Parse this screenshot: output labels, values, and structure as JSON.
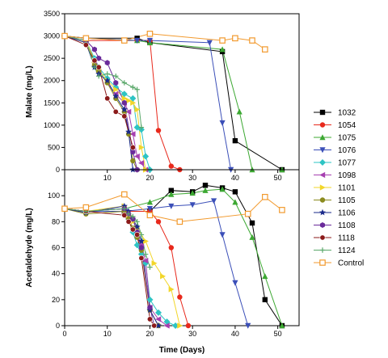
{
  "chart_data": [
    {
      "type": "line",
      "ylabel": "Malate (mg/L)",
      "xlabel": "",
      "xlim": [
        0,
        55
      ],
      "ylim": [
        0,
        3500
      ],
      "yticks": [
        0,
        500,
        1000,
        1500,
        2000,
        2500,
        3000,
        3500
      ],
      "xticks": [
        10,
        20,
        30,
        40,
        50
      ],
      "grid": false,
      "series": [
        {
          "name": "1032",
          "color": "#000000",
          "marker": "square",
          "x": [
            0,
            5,
            17,
            20,
            37,
            40,
            51
          ],
          "y": [
            3000,
            2950,
            2950,
            2850,
            2650,
            650,
            0
          ]
        },
        {
          "name": "1054",
          "color": "#e8291c",
          "marker": "circle",
          "x": [
            0,
            5,
            17,
            20,
            22,
            25,
            27
          ],
          "y": [
            3000,
            2900,
            2900,
            2900,
            880,
            80,
            0
          ]
        },
        {
          "name": "1075",
          "color": "#3ca832",
          "marker": "triangle-up",
          "x": [
            0,
            5,
            17,
            20,
            37,
            41,
            44,
            51
          ],
          "y": [
            3000,
            2950,
            2900,
            2850,
            2700,
            1300,
            0,
            0
          ]
        },
        {
          "name": "1076",
          "color": "#3b4fb8",
          "marker": "triangle-down",
          "x": [
            0,
            5,
            17,
            20,
            34,
            37,
            39
          ],
          "y": [
            3000,
            2950,
            2900,
            2900,
            2850,
            1050,
            0
          ]
        },
        {
          "name": "1077",
          "color": "#2ec4c4",
          "marker": "diamond",
          "x": [
            0,
            5,
            7,
            8,
            10,
            12,
            14,
            16,
            17,
            18,
            19,
            20
          ],
          "y": [
            3000,
            2900,
            2500,
            2300,
            2050,
            1850,
            1700,
            1600,
            950,
            900,
            300,
            0
          ]
        },
        {
          "name": "1098",
          "color": "#a63fb0",
          "marker": "triangle-left",
          "x": [
            0,
            5,
            7,
            8,
            10,
            12,
            14,
            15,
            16,
            17,
            18,
            19
          ],
          "y": [
            3000,
            2900,
            2400,
            2200,
            1950,
            1700,
            1500,
            1300,
            800,
            300,
            150,
            0
          ]
        },
        {
          "name": "1101",
          "color": "#f2d62a",
          "marker": "triangle-right",
          "x": [
            0,
            5,
            7,
            8,
            10,
            12,
            14,
            15,
            16,
            17,
            18,
            19
          ],
          "y": [
            3000,
            2900,
            2450,
            2250,
            2000,
            1800,
            1600,
            1550,
            1500,
            1350,
            500,
            0
          ]
        },
        {
          "name": "1105",
          "color": "#8b8b1e",
          "marker": "circle",
          "x": [
            0,
            5,
            7,
            8,
            10,
            12,
            14,
            15,
            16,
            17
          ],
          "y": [
            3000,
            2850,
            2350,
            2200,
            1950,
            1600,
            1300,
            800,
            200,
            0
          ]
        },
        {
          "name": "1106",
          "color": "#1a2a8a",
          "marker": "star",
          "x": [
            0,
            5,
            7,
            8,
            10,
            12,
            14,
            15,
            16
          ],
          "y": [
            3000,
            2850,
            2300,
            2150,
            2000,
            1650,
            1350,
            850,
            0
          ]
        },
        {
          "name": "1108",
          "color": "#6a2a9a",
          "marker": "hexagon",
          "x": [
            0,
            5,
            7,
            8,
            10,
            12,
            14,
            16,
            17
          ],
          "y": [
            3000,
            2900,
            2700,
            2500,
            2400,
            1950,
            1500,
            400,
            0
          ]
        },
        {
          "name": "1118",
          "color": "#8b1a1a",
          "marker": "circle-half",
          "x": [
            0,
            5,
            7,
            8,
            10,
            12,
            14,
            16
          ],
          "y": [
            3000,
            2800,
            2450,
            2300,
            1600,
            1300,
            1200,
            500
          ]
        },
        {
          "name": "1124",
          "color": "#5aa86a",
          "marker": "plus",
          "x": [
            0,
            5,
            7,
            8,
            10,
            12,
            14,
            16,
            17,
            18
          ],
          "y": [
            3000,
            2900,
            2300,
            2100,
            2150,
            2100,
            1950,
            1850,
            1800,
            950
          ]
        },
        {
          "name": "Control",
          "color": "#f29a2e",
          "marker": "square-open",
          "x": [
            0,
            5,
            14,
            20,
            37,
            40,
            44,
            47
          ],
          "y": [
            3000,
            2950,
            2900,
            3050,
            2900,
            2950,
            2900,
            2700
          ]
        }
      ]
    },
    {
      "type": "line",
      "ylabel": "Acetaldehyde (mg/L)",
      "xlabel": "Time (Days)",
      "xlim": [
        0,
        55
      ],
      "ylim": [
        0,
        120
      ],
      "yticks": [
        0,
        20,
        40,
        60,
        80,
        100
      ],
      "xticks": [
        0,
        10,
        20,
        30,
        40,
        50
      ],
      "grid": false,
      "series": [
        {
          "name": "1032",
          "color": "#000000",
          "marker": "square",
          "x": [
            0,
            5,
            14,
            20,
            25,
            30,
            33,
            37,
            40,
            44,
            47,
            51
          ],
          "y": [
            90,
            88,
            88,
            88,
            104,
            103,
            108,
            106,
            103,
            79,
            20,
            0
          ]
        },
        {
          "name": "1054",
          "color": "#e8291c",
          "marker": "circle",
          "x": [
            0,
            5,
            14,
            20,
            22,
            25,
            27,
            29
          ],
          "y": [
            90,
            88,
            88,
            88,
            80,
            60,
            22,
            0
          ]
        },
        {
          "name": "1075",
          "color": "#3ca832",
          "marker": "triangle-up",
          "x": [
            0,
            5,
            14,
            20,
            25,
            30,
            33,
            37,
            40,
            44,
            47,
            51
          ],
          "y": [
            90,
            88,
            90,
            95,
            101,
            102,
            104,
            105,
            95,
            68,
            38,
            0
          ]
        },
        {
          "name": "1076",
          "color": "#3b4fb8",
          "marker": "triangle-down",
          "x": [
            0,
            5,
            14,
            20,
            25,
            30,
            35,
            37,
            40,
            43
          ],
          "y": [
            90,
            88,
            88,
            90,
            92,
            93,
            96,
            70,
            33,
            0
          ]
        },
        {
          "name": "1077",
          "color": "#2ec4c4",
          "marker": "diamond",
          "x": [
            0,
            5,
            14,
            15,
            16,
            17,
            18,
            19,
            20,
            22,
            24,
            26
          ],
          "y": [
            90,
            88,
            90,
            82,
            72,
            62,
            55,
            48,
            20,
            10,
            3,
            0
          ]
        },
        {
          "name": "1098",
          "color": "#a63fb0",
          "marker": "triangle-left",
          "x": [
            0,
            5,
            14,
            15,
            16,
            17,
            18,
            19,
            20,
            22,
            24
          ],
          "y": [
            90,
            88,
            90,
            82,
            75,
            68,
            62,
            50,
            14,
            5,
            0
          ]
        },
        {
          "name": "1101",
          "color": "#f2d62a",
          "marker": "triangle-right",
          "x": [
            0,
            5,
            14,
            15,
            16,
            17,
            19,
            21,
            23,
            25,
            27
          ],
          "y": [
            90,
            88,
            92,
            85,
            80,
            75,
            65,
            48,
            38,
            28,
            0
          ]
        },
        {
          "name": "1105",
          "color": "#8b8b1e",
          "marker": "circle",
          "x": [
            0,
            5,
            14,
            15,
            16,
            17,
            18,
            20,
            22
          ],
          "y": [
            90,
            86,
            88,
            82,
            75,
            68,
            58,
            12,
            0
          ]
        },
        {
          "name": "1106",
          "color": "#1a2a8a",
          "marker": "star",
          "x": [
            0,
            5,
            14,
            15,
            16,
            17,
            18,
            20,
            22
          ],
          "y": [
            90,
            87,
            92,
            88,
            82,
            76,
            65,
            12,
            0
          ]
        },
        {
          "name": "1108",
          "color": "#6a2a9a",
          "marker": "hexagon",
          "x": [
            0,
            5,
            14,
            15,
            16,
            17,
            18,
            20,
            21
          ],
          "y": [
            90,
            88,
            90,
            86,
            82,
            72,
            60,
            14,
            0
          ]
        },
        {
          "name": "1118",
          "color": "#8b1a1a",
          "marker": "circle-half",
          "x": [
            0,
            5,
            14,
            15,
            16,
            17,
            18,
            20,
            21
          ],
          "y": [
            90,
            88,
            85,
            80,
            74,
            70,
            52,
            5,
            0
          ]
        },
        {
          "name": "1124",
          "color": "#5aa86a",
          "marker": "plus",
          "x": [
            0,
            5,
            14,
            15,
            16,
            17,
            18,
            19,
            20
          ],
          "y": [
            90,
            88,
            90,
            86,
            84,
            80,
            70,
            55,
            45
          ]
        },
        {
          "name": "Control",
          "color": "#f29a2e",
          "marker": "square-open",
          "x": [
            0,
            5,
            14,
            20,
            27,
            43,
            47,
            51
          ],
          "y": [
            90,
            91,
            101,
            85,
            80,
            86,
            99,
            89
          ]
        }
      ]
    }
  ]
}
